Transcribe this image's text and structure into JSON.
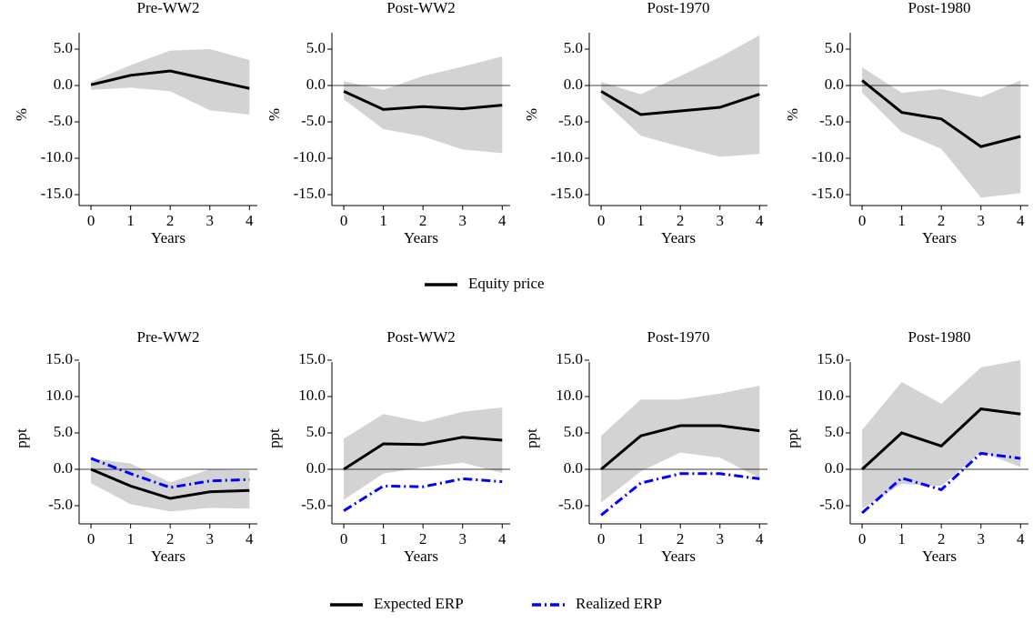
{
  "chart_data": [
    {
      "type": "line",
      "title": "Pre-WW2",
      "xlabel": "Years",
      "ylabel": "%",
      "x": [
        0,
        1,
        2,
        3,
        4
      ],
      "xlim": [
        -0.3,
        4.2
      ],
      "xticks": [
        0,
        1,
        2,
        3,
        4
      ],
      "ylim": [
        -16.5,
        8.5
      ],
      "yticks": [
        {
          "value": -15,
          "label": "-15.0"
        },
        {
          "value": -10,
          "label": "-10.0"
        },
        {
          "value": -5,
          "label": "-5.0"
        },
        {
          "value": 0,
          "label": "0.0"
        },
        {
          "value": 5,
          "label": "5.0"
        }
      ],
      "zero_line": false,
      "band": {
        "color": "#d3d3d3",
        "upper": [
          0.5,
          2.8,
          4.8,
          5.0,
          3.5
        ],
        "lower": [
          -0.6,
          -0.3,
          -0.8,
          -3.4,
          -4.0
        ]
      },
      "series": [
        {
          "name": "Equity price",
          "color": "#000000",
          "linestyle": "solid",
          "values": [
            0.1,
            1.4,
            2.0,
            0.8,
            -0.4
          ]
        }
      ]
    },
    {
      "type": "line",
      "title": "Post-WW2",
      "xlabel": "Years",
      "ylabel": "%",
      "x": [
        0,
        1,
        2,
        3,
        4
      ],
      "xlim": [
        -0.3,
        4.2
      ],
      "xticks": [
        0,
        1,
        2,
        3,
        4
      ],
      "ylim": [
        -16.5,
        8.5
      ],
      "yticks": [
        {
          "value": -15,
          "label": "-15.0"
        },
        {
          "value": -10,
          "label": "-10.0"
        },
        {
          "value": -5,
          "label": "-5.0"
        },
        {
          "value": 0,
          "label": "0.0"
        },
        {
          "value": 5,
          "label": "5.0"
        }
      ],
      "zero_line": true,
      "band": {
        "color": "#d3d3d3",
        "upper": [
          0.6,
          -0.6,
          1.3,
          2.6,
          4.0
        ],
        "lower": [
          -1.9,
          -6.0,
          -7.0,
          -8.8,
          -9.3
        ]
      },
      "series": [
        {
          "color": "#000000",
          "linestyle": "solid",
          "values": [
            -0.8,
            -3.3,
            -2.9,
            -3.2,
            -2.7
          ]
        }
      ]
    },
    {
      "type": "line",
      "title": "Post-1970",
      "xlabel": "Years",
      "ylabel": "%",
      "x": [
        0,
        1,
        2,
        3,
        4
      ],
      "xlim": [
        -0.3,
        4.2
      ],
      "xticks": [
        0,
        1,
        2,
        3,
        4
      ],
      "ylim": [
        -16.5,
        8.5
      ],
      "yticks": [
        {
          "value": -15,
          "label": "-15.0"
        },
        {
          "value": -10,
          "label": "-10.0"
        },
        {
          "value": -5,
          "label": "-5.0"
        },
        {
          "value": 0,
          "label": "0.0"
        },
        {
          "value": 5,
          "label": "5.0"
        }
      ],
      "zero_line": true,
      "band": {
        "color": "#d3d3d3",
        "upper": [
          0.5,
          -1.2,
          1.3,
          3.9,
          6.9
        ],
        "lower": [
          -1.8,
          -6.9,
          -8.4,
          -9.8,
          -9.4
        ]
      },
      "series": [
        {
          "color": "#000000",
          "linestyle": "solid",
          "values": [
            -0.8,
            -4.0,
            -3.5,
            -3.0,
            -1.2
          ]
        }
      ]
    },
    {
      "type": "line",
      "title": "Post-1980",
      "xlabel": "Years",
      "ylabel": "%",
      "x": [
        0,
        1,
        2,
        3,
        4
      ],
      "xlim": [
        -0.3,
        4.2
      ],
      "xticks": [
        0,
        1,
        2,
        3,
        4
      ],
      "ylim": [
        -16.5,
        8.5
      ],
      "yticks": [
        {
          "value": -15,
          "label": "-15.0"
        },
        {
          "value": -10,
          "label": "-10.0"
        },
        {
          "value": -5,
          "label": "-5.0"
        },
        {
          "value": 0,
          "label": "0.0"
        },
        {
          "value": 5,
          "label": "5.0"
        }
      ],
      "zero_line": true,
      "band": {
        "color": "#d3d3d3",
        "upper": [
          2.5,
          -1.0,
          -0.5,
          -1.6,
          0.7
        ],
        "lower": [
          -1.0,
          -6.4,
          -8.7,
          -15.4,
          -14.8
        ]
      },
      "series": [
        {
          "color": "#000000",
          "linestyle": "solid",
          "values": [
            0.7,
            -3.7,
            -4.6,
            -8.4,
            -7.0
          ]
        }
      ]
    },
    {
      "type": "line",
      "title": "Pre-WW2",
      "xlabel": "Years",
      "ylabel": "ppt",
      "x": [
        0,
        1,
        2,
        3,
        4
      ],
      "xlim": [
        -0.3,
        4.2
      ],
      "xticks": [
        0,
        1,
        2,
        3,
        4
      ],
      "ylim": [
        -7.5,
        16
      ],
      "yticks": [
        {
          "value": -5,
          "label": "-5.0"
        },
        {
          "value": 0,
          "label": "0.0"
        },
        {
          "value": 5,
          "label": "5.0"
        },
        {
          "value": 10,
          "label": "10.0"
        },
        {
          "value": 15,
          "label": "15.0"
        }
      ],
      "zero_line": true,
      "band": {
        "color": "#d3d3d3",
        "upper": [
          1.5,
          0.8,
          -1.8,
          0.0,
          -0.2
        ],
        "lower": [
          -1.9,
          -4.8,
          -5.8,
          -5.3,
          -5.4
        ]
      },
      "series": [
        {
          "name": "Expected ERP",
          "color": "#000000",
          "linestyle": "solid",
          "values": [
            0,
            -2.3,
            -4.0,
            -3.1,
            -2.9
          ]
        },
        {
          "name": "Realized ERP",
          "color": "#0000ff",
          "linestyle": "dashdot",
          "values": [
            1.5,
            -0.6,
            -2.5,
            -1.6,
            -1.4
          ]
        }
      ]
    },
    {
      "type": "line",
      "title": "Post-WW2",
      "xlabel": "Years",
      "ylabel": "ppt",
      "x": [
        0,
        1,
        2,
        3,
        4
      ],
      "xlim": [
        -0.3,
        4.2
      ],
      "xticks": [
        0,
        1,
        2,
        3,
        4
      ],
      "ylim": [
        -7.5,
        16
      ],
      "yticks": [
        {
          "value": -5,
          "label": "-5.0"
        },
        {
          "value": 0,
          "label": "0.0"
        },
        {
          "value": 5,
          "label": "5.0"
        },
        {
          "value": 10,
          "label": "10.0"
        },
        {
          "value": 15,
          "label": "15.0"
        }
      ],
      "zero_line": true,
      "band": {
        "color": "#d3d3d3",
        "upper": [
          4.2,
          7.6,
          6.5,
          7.9,
          8.5
        ],
        "lower": [
          -4.2,
          -0.6,
          0.3,
          0.9,
          -0.5
        ]
      },
      "series": [
        {
          "color": "#000000",
          "linestyle": "solid",
          "values": [
            0,
            3.5,
            3.4,
            4.4,
            4.0
          ]
        },
        {
          "color": "#0000ff",
          "linestyle": "dashdot",
          "values": [
            -5.7,
            -2.3,
            -2.4,
            -1.3,
            -1.7
          ]
        }
      ]
    },
    {
      "type": "line",
      "title": "Post-1970",
      "xlabel": "Years",
      "ylabel": "ppt",
      "x": [
        0,
        1,
        2,
        3,
        4
      ],
      "xlim": [
        -0.3,
        4.2
      ],
      "xticks": [
        0,
        1,
        2,
        3,
        4
      ],
      "ylim": [
        -7.5,
        16
      ],
      "yticks": [
        {
          "value": -5,
          "label": "-5.0"
        },
        {
          "value": 0,
          "label": "0.0"
        },
        {
          "value": 5,
          "label": "5.0"
        },
        {
          "value": 10,
          "label": "10.0"
        },
        {
          "value": 15,
          "label": "15.0"
        }
      ],
      "zero_line": true,
      "band": {
        "color": "#d3d3d3",
        "upper": [
          4.6,
          9.6,
          9.6,
          10.4,
          11.5
        ],
        "lower": [
          -4.6,
          -0.3,
          2.3,
          1.6,
          -1.2
        ]
      },
      "series": [
        {
          "color": "#000000",
          "linestyle": "solid",
          "values": [
            0,
            4.6,
            6.0,
            6.0,
            5.3
          ]
        },
        {
          "color": "#0000ff",
          "linestyle": "dashdot",
          "values": [
            -6.3,
            -1.9,
            -0.6,
            -0.6,
            -1.3
          ]
        }
      ]
    },
    {
      "type": "line",
      "title": "Post-1980",
      "xlabel": "Years",
      "ylabel": "ppt",
      "x": [
        0,
        1,
        2,
        3,
        4
      ],
      "xlim": [
        -0.3,
        4.2
      ],
      "xticks": [
        0,
        1,
        2,
        3,
        4
      ],
      "ylim": [
        -7.5,
        16
      ],
      "yticks": [
        {
          "value": -5,
          "label": "-5.0"
        },
        {
          "value": 0,
          "label": "0.0"
        },
        {
          "value": 5,
          "label": "5.0"
        },
        {
          "value": 10,
          "label": "10.0"
        },
        {
          "value": 15,
          "label": "15.0"
        }
      ],
      "zero_line": true,
      "band": {
        "color": "#d3d3d3",
        "upper": [
          5.4,
          12.0,
          9.0,
          14.0,
          15.0
        ],
        "lower": [
          -5.4,
          -2.0,
          -2.3,
          2.4,
          0.3
        ]
      },
      "series": [
        {
          "color": "#000000",
          "linestyle": "solid",
          "values": [
            0,
            5.0,
            3.2,
            8.3,
            7.6
          ]
        },
        {
          "color": "#0000ff",
          "linestyle": "dashdot",
          "values": [
            -6.0,
            -1.2,
            -2.8,
            2.2,
            1.5
          ]
        }
      ]
    }
  ]
}
